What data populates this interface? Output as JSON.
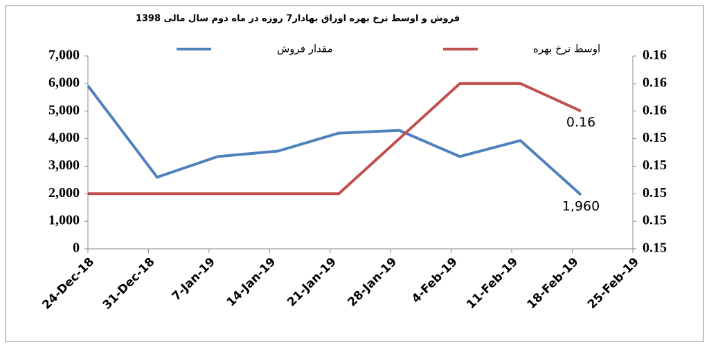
{
  "chart_data": {
    "type": "line",
    "title": "فروش و اوسط نرخ بهره اوراق بهادار7 روزه در ماه  دوم سال مالی 1398",
    "x": [
      "2018-12-24",
      "2019-01-01",
      "2019-01-08",
      "2019-01-15",
      "2019-01-22",
      "2019-01-29",
      "2019-02-05",
      "2019-02-12",
      "2019-02-19"
    ],
    "series": [
      {
        "name": "مقدار فروش",
        "color": "#4f81bd",
        "values": [
          5920,
          2600,
          3350,
          3550,
          4200,
          4300,
          3350,
          3930,
          1960
        ],
        "value_labels": [
          null,
          null,
          null,
          null,
          null,
          null,
          null,
          null,
          "1,960"
        ]
      },
      {
        "name": "اوسط نرخ بهره",
        "color": "#c0504d",
        "axis": "y2",
        "values": [
          0.15,
          0.15,
          0.15,
          0.15,
          0.15,
          0.154,
          0.158,
          0.158,
          0.156
        ],
        "value_labels": [
          null,
          null,
          null,
          null,
          null,
          null,
          null,
          null,
          "0.16"
        ]
      }
    ],
    "xlim": [
      "2018-12-24",
      "2019-02-25"
    ],
    "xticks": [
      {
        "value": "2018-12-24",
        "label": "24-Dec-18"
      },
      {
        "value": "2018-12-31",
        "label": "31-Dec-18"
      },
      {
        "value": "2019-01-07",
        "label": "7-Jan-19"
      },
      {
        "value": "2019-01-14",
        "label": "14-Jan-19"
      },
      {
        "value": "2019-01-21",
        "label": "21-Jan-19"
      },
      {
        "value": "2019-01-28",
        "label": "28-Jan-19"
      },
      {
        "value": "2019-02-04",
        "label": "4-Feb-19"
      },
      {
        "value": "2019-02-11",
        "label": "11-Feb-19"
      },
      {
        "value": "2019-02-18",
        "label": "18-Feb-19"
      },
      {
        "value": "2019-02-25",
        "label": "25-Feb-19"
      }
    ],
    "ylim": [
      0,
      7000
    ],
    "yticks": [
      0,
      {
        "value": 1000,
        "label": "1,000"
      },
      {
        "value": 2000,
        "label": "2,000"
      },
      {
        "value": 3000,
        "label": "3,000"
      },
      {
        "value": 4000,
        "label": "4,000"
      },
      {
        "value": 5000,
        "label": "5,000"
      },
      {
        "value": 6000,
        "label": "6,000"
      },
      {
        "value": 7000,
        "label": "7,000"
      }
    ],
    "y2lim": [
      0.146,
      0.16
    ],
    "y2ticks": [
      {
        "value": 0.146,
        "label": "0.15"
      },
      {
        "value": 0.148,
        "label": "0.15"
      },
      {
        "value": 0.15,
        "label": "0.15"
      },
      {
        "value": 0.152,
        "label": "0.15"
      },
      {
        "value": 0.154,
        "label": "0.15"
      },
      {
        "value": 0.156,
        "label": "0.16"
      },
      {
        "value": 0.158,
        "label": "0.16"
      },
      {
        "value": 0.16,
        "label": "0.16"
      }
    ]
  }
}
